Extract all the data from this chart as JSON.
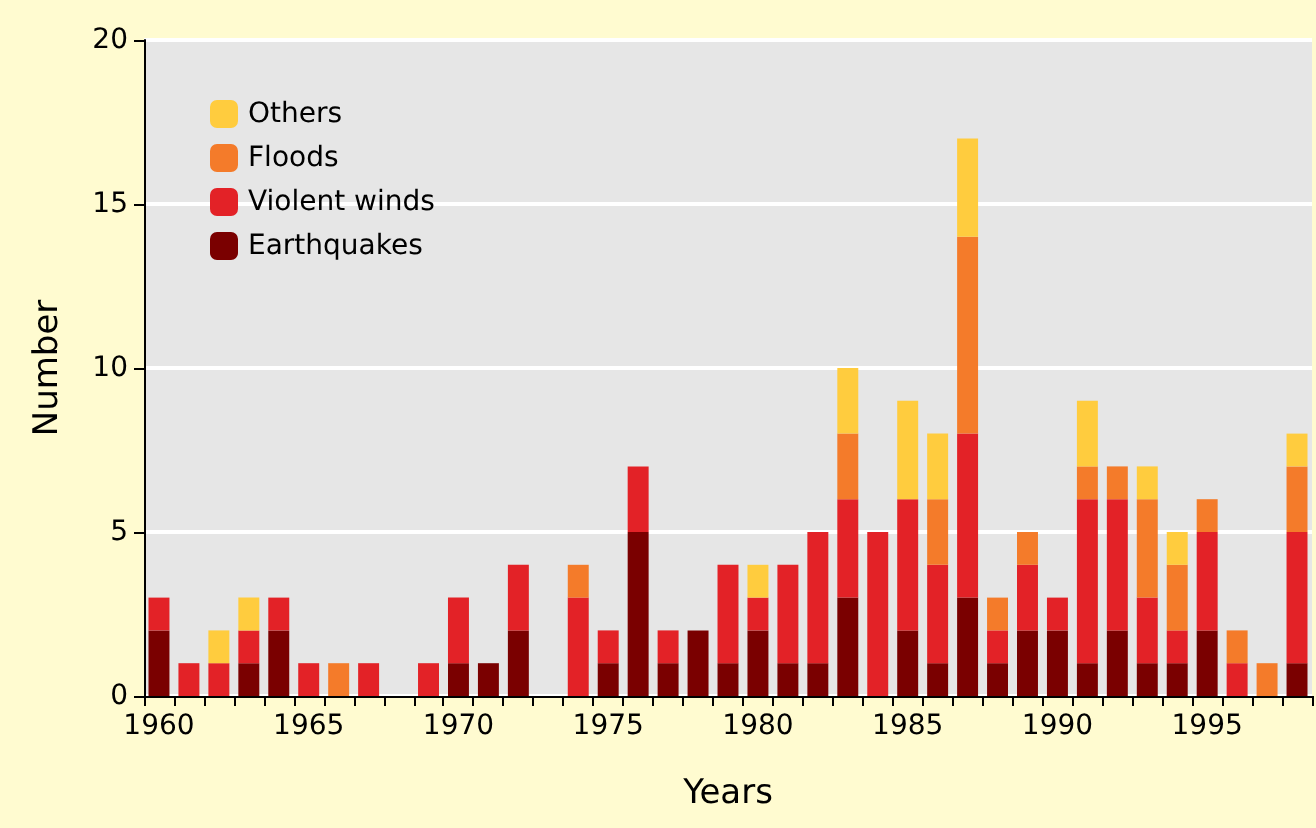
{
  "chart_data": {
    "type": "bar",
    "stacked": true,
    "xlabel": "Years",
    "ylabel": "Number",
    "categories": [
      "1960",
      null,
      null,
      null,
      null,
      "1965",
      null,
      null,
      null,
      null,
      "1970",
      null,
      null,
      null,
      null,
      "1975",
      null,
      null,
      null,
      null,
      "1980",
      null,
      null,
      null,
      null,
      "1985",
      null,
      null,
      null,
      null,
      "1990",
      null,
      null,
      null,
      null,
      "1995",
      null,
      null,
      null
    ],
    "series": [
      {
        "name": "Earthquakes",
        "color": "#7a0000",
        "values": [
          2,
          0,
          0,
          1,
          2,
          0,
          0,
          0,
          0,
          0,
          1,
          1,
          2,
          0,
          0,
          1,
          5,
          1,
          2,
          1,
          2,
          1,
          1,
          3,
          0,
          2,
          1,
          3,
          1,
          2,
          2,
          1,
          2,
          1,
          1,
          2,
          0,
          0,
          1
        ]
      },
      {
        "name": "Violent winds",
        "color": "#e32227",
        "values": [
          1,
          1,
          1,
          1,
          1,
          1,
          0,
          1,
          0,
          1,
          2,
          0,
          2,
          0,
          3,
          1,
          2,
          1,
          0,
          3,
          1,
          3,
          4,
          3,
          5,
          4,
          3,
          5,
          1,
          2,
          1,
          5,
          4,
          2,
          1,
          3,
          1,
          0,
          4
        ]
      },
      {
        "name": "Floods",
        "color": "#f47b2a",
        "values": [
          0,
          0,
          0,
          0,
          0,
          0,
          1,
          0,
          0,
          0,
          0,
          0,
          0,
          0,
          1,
          0,
          0,
          0,
          0,
          0,
          0,
          0,
          0,
          2,
          0,
          0,
          2,
          6,
          1,
          1,
          0,
          1,
          1,
          3,
          2,
          1,
          1,
          1,
          2
        ]
      },
      {
        "name": "Others",
        "color": "#ffcc3e",
        "values": [
          0,
          0,
          1,
          1,
          0,
          0,
          0,
          0,
          0,
          0,
          0,
          0,
          0,
          0,
          0,
          0,
          0,
          0,
          0,
          0,
          1,
          0,
          0,
          2,
          0,
          3,
          2,
          3,
          0,
          0,
          0,
          2,
          0,
          1,
          1,
          0,
          0,
          0,
          1
        ]
      }
    ],
    "ylim": [
      0,
      20
    ],
    "yticks": [
      0,
      5,
      10,
      15,
      20
    ],
    "grid": "y",
    "legend": "top left"
  }
}
